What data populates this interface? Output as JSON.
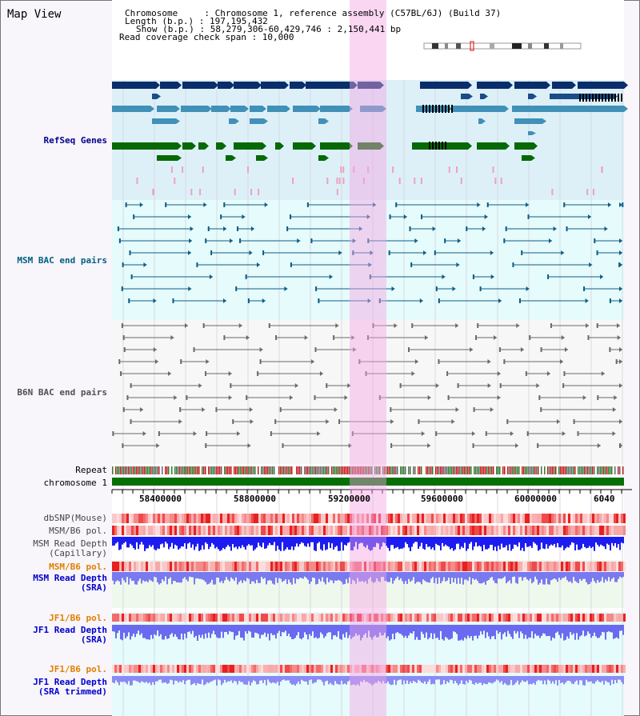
{
  "view_title": "Map View",
  "info": {
    "chromosome": "Chromosome     : Chromosome 1, reference assembly (C57BL/6J) (Build 37)",
    "length": "Length (b.p.) : 197,195,432",
    "show": "Show (b.p.) : 58,279,306-60,429,746 : 2,150,441 bp",
    "coverage": "Read coverage check span : 10,000"
  },
  "tracks": {
    "refseq": "RefSeq Genes",
    "msm_bac": "MSM BAC end pairs",
    "b6n_bac": "B6N BAC end pairs",
    "repeat": "Repeat",
    "chromosome": "chromosome 1",
    "dbsnp": "dbSNP(Mouse)",
    "msm_b6_pol_1": "MSM/B6 pol.",
    "msm_depth_cap_1": "MSM Read Depth",
    "msm_depth_cap_2": "(Capillary)",
    "msm_b6_pol_2": "MSM/B6 pol.",
    "msm_depth_sra_1": "MSM Read Depth",
    "msm_depth_sra_2": "(SRA)",
    "jf1_b6_pol_1": "JF1/B6 pol.",
    "jf1_depth_sra_1": "JF1 Read Depth",
    "jf1_depth_sra_2": "(SRA)",
    "jf1_b6_pol_2": "JF1/B6 pol.",
    "jf1_depth_trim_1": "JF1 Read Depth",
    "jf1_depth_trim_2": "(SRA trimmed)"
  },
  "axis": {
    "ticks": [
      "58400000",
      "58800000",
      "59200000",
      "59600000",
      "60000000",
      "6040"
    ]
  },
  "colors": {
    "refseq_label": "#00008b",
    "msm_label": "#006080",
    "b6n_label": "#505050",
    "orange_label": "#e08000",
    "blue_label": "#0000cc",
    "highlight": "#f8c8ee"
  }
}
